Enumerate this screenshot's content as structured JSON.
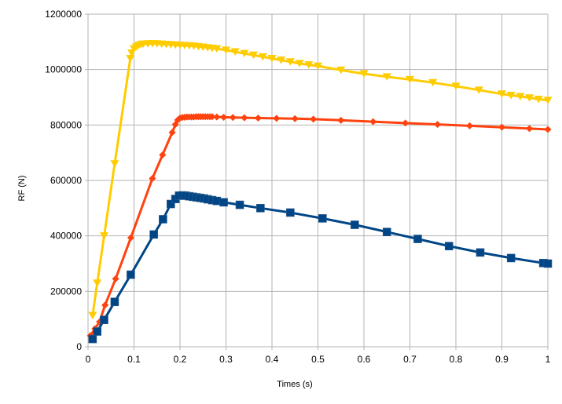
{
  "chart_data": {
    "type": "line",
    "title": "",
    "xlabel": "Times (s)",
    "ylabel": "RF  (N)",
    "xlim": [
      0,
      1
    ],
    "ylim": [
      0,
      1200000
    ],
    "xticks": [
      0,
      0.1,
      0.2,
      0.3,
      0.4,
      0.5,
      0.6,
      0.7,
      0.8,
      0.9,
      1
    ],
    "xtick_labels": [
      "0",
      "0.1",
      "0.2",
      "0.3",
      "0.4",
      "0.5",
      "0.6",
      "0.7",
      "0.8",
      "0.9",
      "1"
    ],
    "yticks": [
      0,
      200000,
      400000,
      600000,
      800000,
      1000000,
      1200000
    ],
    "ytick_labels": [
      "0",
      "200000",
      "400000",
      "600000",
      "800000",
      "1000000",
      "1200000"
    ],
    "grid": true,
    "legend": "none",
    "series": [
      {
        "name": "yellow-series",
        "color": "#ffcc00",
        "marker": "triangle-down",
        "x": [
          0.01,
          0.02,
          0.035,
          0.058,
          0.092,
          0.095,
          0.1,
          0.105,
          0.11,
          0.115,
          0.12,
          0.13,
          0.14,
          0.15,
          0.16,
          0.17,
          0.18,
          0.19,
          0.2,
          0.21,
          0.22,
          0.23,
          0.24,
          0.25,
          0.26,
          0.27,
          0.28,
          0.3,
          0.32,
          0.34,
          0.36,
          0.38,
          0.4,
          0.42,
          0.44,
          0.46,
          0.48,
          0.5,
          0.55,
          0.6,
          0.65,
          0.7,
          0.75,
          0.8,
          0.85,
          0.9,
          0.92,
          0.94,
          0.96,
          0.98,
          1.0
        ],
        "y": [
          113000,
          230000,
          400000,
          660000,
          1040000,
          1060000,
          1075000,
          1082000,
          1087000,
          1090000,
          1092000,
          1093000,
          1094000,
          1093000,
          1092000,
          1091000,
          1090000,
          1089000,
          1088000,
          1087000,
          1086000,
          1085000,
          1083000,
          1081000,
          1079000,
          1077000,
          1075000,
          1070000,
          1064000,
          1058000,
          1052000,
          1046000,
          1040000,
          1034000,
          1028000,
          1022000,
          1017000,
          1013000,
          998000,
          985000,
          974000,
          964000,
          953000,
          940000,
          926000,
          912000,
          907000,
          903000,
          898000,
          893000,
          889000
        ]
      },
      {
        "name": "orange-series",
        "color": "#ff420e",
        "marker": "diamond",
        "x": [
          0.005,
          0.015,
          0.025,
          0.037,
          0.06,
          0.093,
          0.14,
          0.162,
          0.183,
          0.19,
          0.195,
          0.2,
          0.205,
          0.21,
          0.215,
          0.22,
          0.225,
          0.23,
          0.235,
          0.24,
          0.245,
          0.25,
          0.255,
          0.26,
          0.265,
          0.27,
          0.28,
          0.295,
          0.315,
          0.34,
          0.37,
          0.41,
          0.45,
          0.49,
          0.55,
          0.62,
          0.69,
          0.76,
          0.83,
          0.9,
          0.96,
          1.0
        ],
        "y": [
          40000,
          65000,
          90000,
          150000,
          245000,
          393000,
          607000,
          692000,
          773000,
          802000,
          818000,
          825000,
          827000,
          828000,
          829000,
          829000,
          829000,
          829000,
          830000,
          830000,
          830000,
          830000,
          830000,
          830000,
          830000,
          830000,
          829000,
          828000,
          827000,
          826000,
          825000,
          824000,
          823000,
          821000,
          817000,
          812000,
          807000,
          802000,
          797000,
          792000,
          787000,
          784000
        ]
      },
      {
        "name": "blue-series",
        "color": "#004586",
        "marker": "square",
        "x": [
          0.01,
          0.02,
          0.035,
          0.058,
          0.093,
          0.143,
          0.163,
          0.18,
          0.19,
          0.198,
          0.205,
          0.212,
          0.22,
          0.228,
          0.236,
          0.244,
          0.252,
          0.26,
          0.27,
          0.28,
          0.295,
          0.33,
          0.375,
          0.44,
          0.51,
          0.58,
          0.65,
          0.717,
          0.785,
          0.853,
          0.92,
          0.99,
          1.0
        ],
        "y": [
          28000,
          55000,
          97000,
          162000,
          260000,
          405000,
          460000,
          515000,
          533000,
          545000,
          546000,
          545000,
          543000,
          541000,
          539000,
          537000,
          535000,
          532000,
          529000,
          526000,
          521000,
          512000,
          500000,
          484000,
          463000,
          440000,
          414000,
          389000,
          363000,
          340000,
          320000,
          302000,
          300000
        ]
      }
    ]
  }
}
